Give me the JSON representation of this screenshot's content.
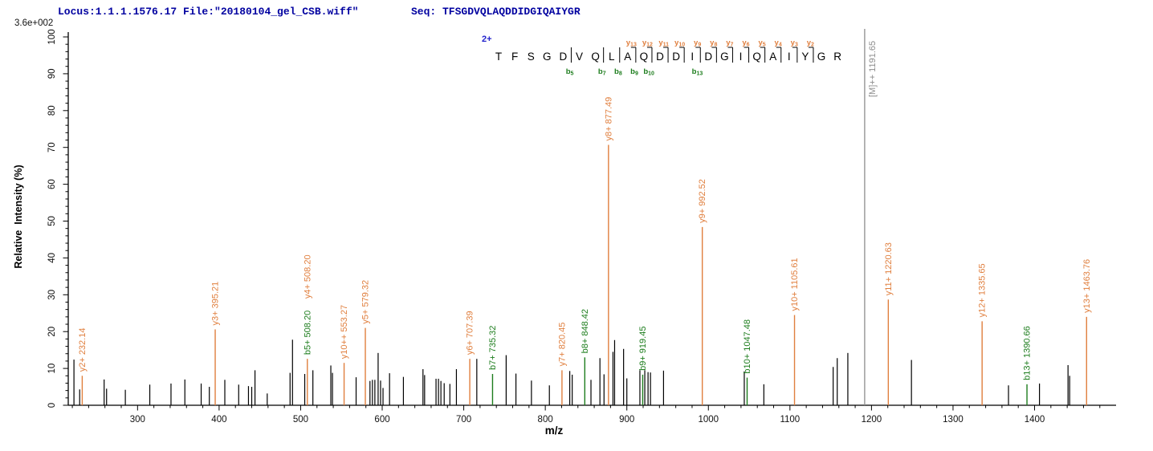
{
  "header": {
    "locus_file": "Locus:1.1.1.1576.17 File:\"20180104_gel_CSB.wiff\"",
    "seq": "Seq: TFSGDVQLAQDDIDGIQAIYGR",
    "max_intensity": "3.6e+002"
  },
  "colors": {
    "k": "#000000",
    "o": "#e07f3e",
    "g": "#1d7d1d",
    "m": "#8d8d8d",
    "header_blue": "#0000a0",
    "charge_blue": "#2222cc",
    "axis": "#000000"
  },
  "chart_data": {
    "type": "bar",
    "subtype": "ms2-fragment-spectrum",
    "title": "",
    "xlabel": "m/z",
    "ylabel": "Relative  Intensity (%)",
    "xlim": [
      215,
      1495
    ],
    "ylim": [
      0,
      100
    ],
    "x_major_ticks": [
      300,
      400,
      500,
      600,
      700,
      800,
      900,
      1000,
      1100,
      1200,
      1300,
      1400
    ],
    "x_minor_step": 20,
    "y_major_step": 10,
    "y_minor_step": 2,
    "grid": false,
    "max_intensity_label": "3.6e+002",
    "precursor": {
      "charge_label": "2+",
      "label": "[M]++ 1191.65",
      "mz": 1191.65,
      "intensity_pct": 100
    },
    "peak_columns": [
      "mz",
      "intensity_pct",
      "color",
      "label",
      "label2"
    ],
    "peaks": [
      [
        222,
        12.4,
        "k"
      ],
      [
        229,
        4.3,
        "k"
      ],
      [
        232.14,
        8.0,
        "o",
        "y2+ 232.14"
      ],
      [
        259,
        7.0,
        "k"
      ],
      [
        262,
        4.5,
        "k"
      ],
      [
        285,
        4.2,
        "k"
      ],
      [
        315,
        5.6,
        "k"
      ],
      [
        341,
        5.9,
        "k"
      ],
      [
        358,
        7.0,
        "k"
      ],
      [
        378,
        5.9,
        "k"
      ],
      [
        388,
        5.0,
        "k"
      ],
      [
        395.21,
        20.6,
        "o",
        "y3+ 395.21"
      ],
      [
        407,
        6.9,
        "k"
      ],
      [
        424,
        5.6,
        "k"
      ],
      [
        436,
        5.2,
        "k"
      ],
      [
        440,
        5.0,
        "k"
      ],
      [
        444,
        9.5,
        "k"
      ],
      [
        459,
        3.2,
        "k"
      ],
      [
        487,
        8.8,
        "k"
      ],
      [
        490,
        17.8,
        "k"
      ],
      [
        505,
        8.5,
        "k"
      ],
      [
        508.2,
        12.6,
        "o",
        "b5+ 508.20",
        "y4+ 508.20"
      ],
      [
        515,
        9.5,
        "k"
      ],
      [
        537,
        10.8,
        "k"
      ],
      [
        539,
        8.8,
        "k"
      ],
      [
        553.27,
        11.5,
        "o",
        "y10++ 553.27"
      ],
      [
        568,
        7.6,
        "k"
      ],
      [
        579.32,
        21.0,
        "o",
        "y5+ 579.32"
      ],
      [
        585,
        6.6,
        "k"
      ],
      [
        588,
        6.9,
        "k"
      ],
      [
        591,
        6.9,
        "k"
      ],
      [
        595,
        14.2,
        "k"
      ],
      [
        598,
        6.7,
        "k"
      ],
      [
        601,
        4.7,
        "k"
      ],
      [
        609,
        8.7,
        "k"
      ],
      [
        626,
        7.7,
        "k"
      ],
      [
        650,
        9.8,
        "k"
      ],
      [
        652,
        8.2,
        "k"
      ],
      [
        666,
        7.2,
        "k"
      ],
      [
        669,
        7.2,
        "k"
      ],
      [
        672,
        6.6,
        "k"
      ],
      [
        676,
        6.0,
        "k"
      ],
      [
        683,
        5.8,
        "k"
      ],
      [
        691,
        9.8,
        "k"
      ],
      [
        707.39,
        12.6,
        "o",
        "y6+ 707.39"
      ],
      [
        716,
        12.6,
        "k"
      ],
      [
        735.32,
        8.5,
        "g",
        "b7+ 735.32"
      ],
      [
        752,
        13.6,
        "k"
      ],
      [
        764,
        8.6,
        "k"
      ],
      [
        783,
        6.7,
        "k"
      ],
      [
        805,
        5.4,
        "k"
      ],
      [
        820.45,
        9.5,
        "o",
        "y7+ 820.45"
      ],
      [
        830,
        9.3,
        "k"
      ],
      [
        833,
        8.3,
        "k"
      ],
      [
        848.42,
        13.0,
        "g",
        "b8+ 848.42"
      ],
      [
        856,
        6.9,
        "k"
      ],
      [
        867,
        12.8,
        "k"
      ],
      [
        872,
        8.4,
        "k"
      ],
      [
        877.49,
        70.7,
        "o",
        "y8+ 877.49"
      ],
      [
        883,
        14.5,
        "k"
      ],
      [
        885,
        17.7,
        "k"
      ],
      [
        896,
        15.3,
        "k"
      ],
      [
        900,
        7.3,
        "k"
      ],
      [
        916,
        9.5,
        "k"
      ],
      [
        919.45,
        8.3,
        "g",
        "b9+ 919.45"
      ],
      [
        922,
        9.5,
        "k"
      ],
      [
        926,
        9.0,
        "k"
      ],
      [
        929,
        8.9,
        "k"
      ],
      [
        945,
        9.4,
        "k"
      ],
      [
        992.52,
        48.4,
        "o",
        "y9+ 992.52"
      ],
      [
        1044,
        9.2,
        "k"
      ],
      [
        1047.48,
        7.5,
        "g",
        "b10+ 1047.48"
      ],
      [
        1068,
        5.7,
        "k"
      ],
      [
        1105.61,
        24.5,
        "o",
        "y10+ 1105.61"
      ],
      [
        1153,
        10.4,
        "k"
      ],
      [
        1158,
        12.8,
        "k"
      ],
      [
        1171,
        14.2,
        "k"
      ],
      [
        1220.63,
        28.7,
        "o",
        "y11+ 1220.63"
      ],
      [
        1249,
        12.3,
        "k"
      ],
      [
        1335.65,
        22.8,
        "o",
        "y12+ 1335.65"
      ],
      [
        1368,
        5.4,
        "k"
      ],
      [
        1390.66,
        5.7,
        "g",
        "b13+ 1390.66"
      ],
      [
        1406,
        5.9,
        "k"
      ],
      [
        1441,
        10.9,
        "k"
      ],
      [
        1443,
        8.0,
        "k"
      ],
      [
        1463.76,
        24.0,
        "o",
        "y13+ 1463.76"
      ]
    ],
    "sequence": {
      "residues": "TFSGDVQLAQDDIDGIQAIYGR",
      "charge_label": "2+",
      "y_ions": [
        {
          "n": 13,
          "after": 9
        },
        {
          "n": 12,
          "after": 10
        },
        {
          "n": 11,
          "after": 11
        },
        {
          "n": 10,
          "after": 12
        },
        {
          "n": 9,
          "after": 13
        },
        {
          "n": 8,
          "after": 14
        },
        {
          "n": 7,
          "after": 15
        },
        {
          "n": 6,
          "after": 16
        },
        {
          "n": 5,
          "after": 17
        },
        {
          "n": 4,
          "after": 18
        },
        {
          "n": 3,
          "after": 19
        },
        {
          "n": 2,
          "after": 20
        }
      ],
      "b_ions": [
        {
          "n": 5,
          "after": 5
        },
        {
          "n": 7,
          "after": 7
        },
        {
          "n": 8,
          "after": 8
        },
        {
          "n": 9,
          "after": 9
        },
        {
          "n": 10,
          "after": 10
        },
        {
          "n": 13,
          "after": 13
        }
      ]
    }
  }
}
